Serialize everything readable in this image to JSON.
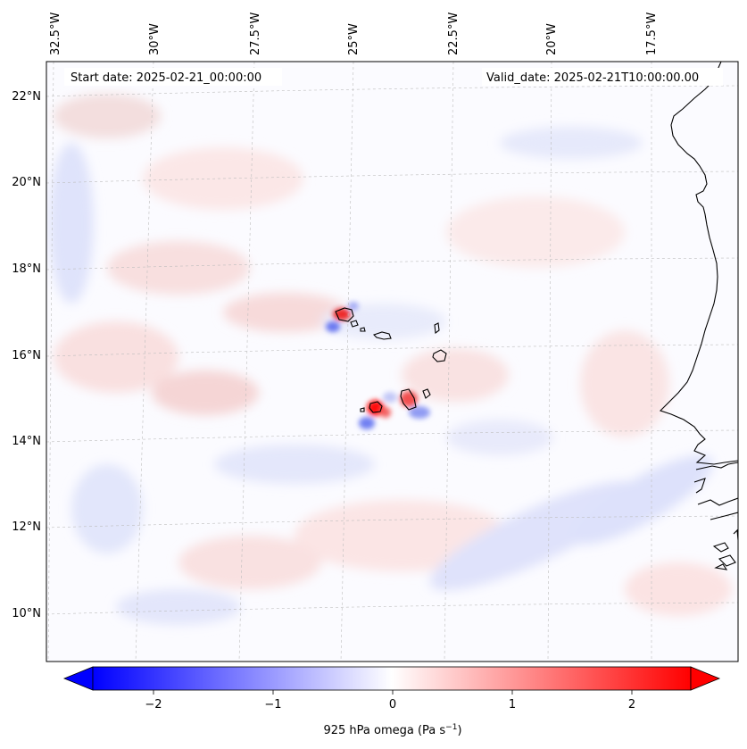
{
  "header": {
    "start_date": "Start date: 2025-02-21_00:00:00",
    "valid_date": "Valid_date: 2025-02-21T10:00:00.00"
  },
  "lon_labels": [
    "32.5°W",
    "30°W",
    "27.5°W",
    "25°W",
    "22.5°W",
    "20°W",
    "17.5°W"
  ],
  "lat_labels": [
    "22°N",
    "20°N",
    "18°N",
    "16°N",
    "14°N",
    "12°N",
    "10°N"
  ],
  "colorbar": {
    "label": "925 hPa omega (Pa s",
    "label_sup": "−1",
    "label_end": ")",
    "ticks": [
      "−2",
      "−1",
      "0",
      "1",
      "2"
    ],
    "min": -2.6,
    "max": 2.6,
    "colors": {
      "negative": "#0000ff",
      "zero": "#ffffff",
      "positive": "#ff0000"
    }
  }
}
